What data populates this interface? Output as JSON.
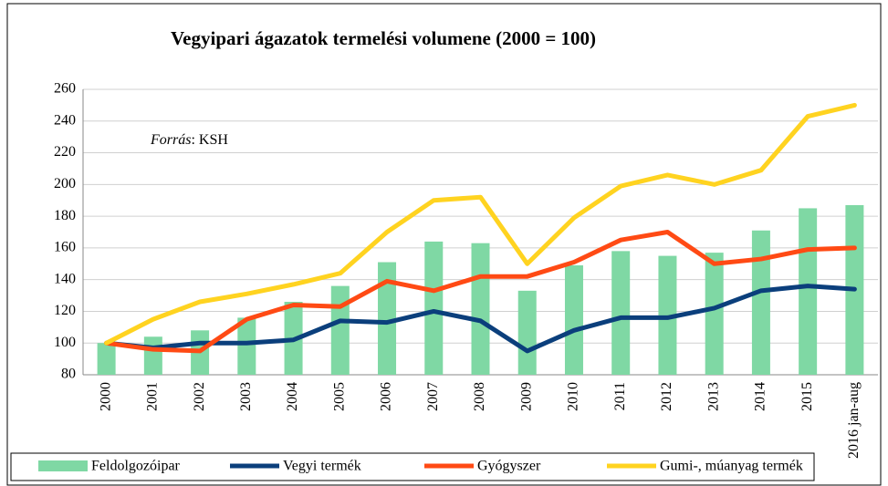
{
  "chart_data": {
    "type": "bar-line",
    "title": "Vegyipari ágazatok termelési volumene (2000 = 100)",
    "source_label": "Forrás",
    "source": ": KSH",
    "categories": [
      "2000",
      "2001",
      "2002",
      "2003",
      "2004",
      "2005",
      "2006",
      "2007",
      "2008",
      "2009",
      "2010",
      "2011",
      "2012",
      "2013",
      "2014",
      "2015",
      "2016 jan-aug"
    ],
    "series": [
      {
        "name": "Feldolgozóipar",
        "kind": "bar",
        "color": "#7fd8a4",
        "values": [
          100,
          104,
          108,
          116,
          126,
          136,
          151,
          164,
          163,
          133,
          149,
          158,
          155,
          157,
          171,
          185,
          187
        ]
      },
      {
        "name": "Vegyi termék",
        "kind": "line",
        "color": "#0b3f7c",
        "values": [
          100,
          97,
          100,
          100,
          102,
          114,
          113,
          120,
          114,
          95,
          108,
          116,
          116,
          122,
          133,
          136,
          134
        ]
      },
      {
        "name": "Gyógyszer",
        "kind": "line",
        "color": "#ff4a14",
        "values": [
          100,
          96,
          95,
          115,
          124,
          123,
          139,
          133,
          142,
          142,
          151,
          165,
          170,
          150,
          153,
          159,
          160
        ]
      },
      {
        "name": "Gumi-, múanyag termék",
        "kind": "line",
        "color": "#ffd320",
        "values": [
          100,
          115,
          126,
          131,
          137,
          144,
          170,
          190,
          192,
          150,
          179,
          199,
          206,
          200,
          209,
          243,
          250
        ]
      }
    ],
    "ylim": [
      80,
      260
    ],
    "yticks": [
      80,
      100,
      120,
      140,
      160,
      180,
      200,
      220,
      240,
      260
    ],
    "grid": true
  }
}
